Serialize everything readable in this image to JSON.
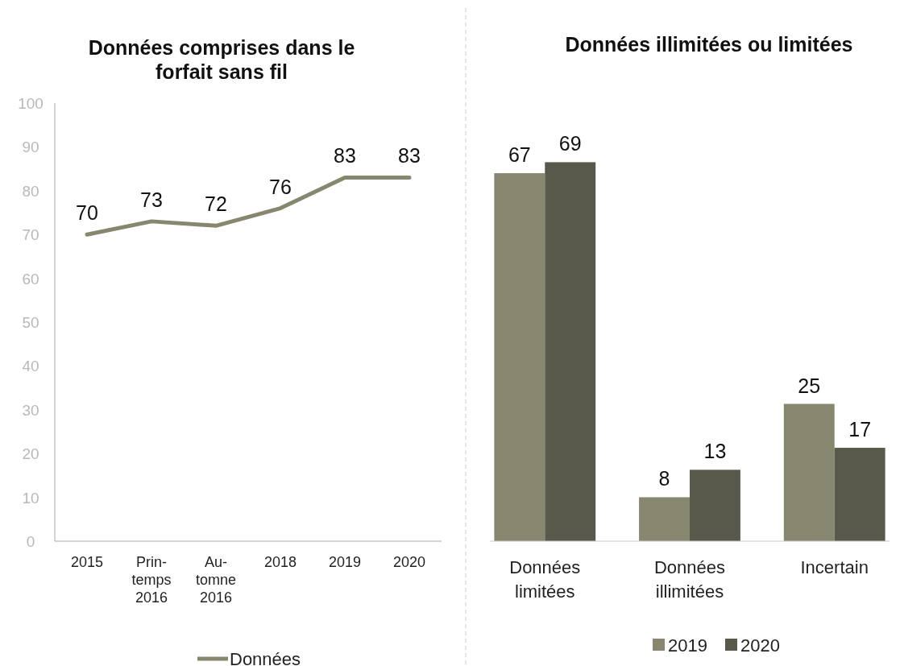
{
  "chart_data": [
    {
      "type": "line",
      "title": "Données comprises dans le\nforfait sans fil",
      "categories": [
        "2015",
        "Prin-\ntemps\n2016",
        "Au-\ntomne\n2016",
        "2018",
        "2019",
        "2020"
      ],
      "series": [
        {
          "name": "Données",
          "color": "#87876f",
          "values": [
            70,
            73,
            72,
            76,
            83,
            83
          ]
        }
      ],
      "ylim": [
        0,
        100
      ],
      "yticks": [
        0,
        10,
        20,
        30,
        40,
        50,
        60,
        70,
        80,
        90,
        100
      ],
      "data_labels": true,
      "legend": "bottom",
      "grid": false,
      "marker": "none",
      "line_style": "solid"
    },
    {
      "type": "bar",
      "title": "Données illimitées ou limitées",
      "categories": [
        "Données\nlimitées",
        "Données\nillimitées",
        "Incertain"
      ],
      "series": [
        {
          "name": "2019",
          "color": "#87876f",
          "values": [
            67,
            8,
            25
          ]
        },
        {
          "name": "2020",
          "color": "#59594b",
          "values": [
            69,
            13,
            17
          ]
        }
      ],
      "data_labels": true,
      "legend": "bottom"
    }
  ]
}
